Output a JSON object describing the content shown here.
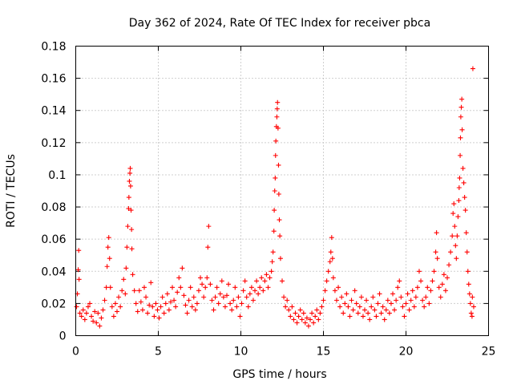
{
  "chart_data": {
    "type": "scatter",
    "title": "Day 362 of 2024, Rate Of TEC Index for receiver pbca",
    "xlabel": "GPS time / hours",
    "ylabel": "ROTI / TECUs",
    "xlim": [
      0,
      25
    ],
    "ylim": [
      0,
      0.18
    ],
    "x_ticks": [
      0,
      5,
      10,
      15,
      20,
      25
    ],
    "x_tick_labels": [
      "0",
      "5",
      "10",
      "15",
      "20",
      "25"
    ],
    "y_ticks": [
      0,
      0.02,
      0.04,
      0.06,
      0.08,
      0.1,
      0.12,
      0.14,
      0.16,
      0.18
    ],
    "y_tick_labels": [
      "0",
      "0.02",
      "0.04",
      "0.06",
      "0.08",
      "0.1",
      "0.12",
      "0.14",
      "0.16",
      "0.18"
    ],
    "grid": true,
    "marker": "+",
    "color": "#ff0000",
    "series": [
      {
        "name": "ROTI",
        "points": [
          [
            0.05,
            0.018
          ],
          [
            0.1,
            0.026
          ],
          [
            0.15,
            0.041
          ],
          [
            0.18,
            0.053
          ],
          [
            0.2,
            0.035
          ],
          [
            0.25,
            0.014
          ],
          [
            0.35,
            0.012
          ],
          [
            0.45,
            0.016
          ],
          [
            0.55,
            0.01
          ],
          [
            0.65,
            0.014
          ],
          [
            0.75,
            0.018
          ],
          [
            0.85,
            0.02
          ],
          [
            0.95,
            0.012
          ],
          [
            1.05,
            0.009
          ],
          [
            1.15,
            0.015
          ],
          [
            1.25,
            0.008
          ],
          [
            1.35,
            0.014
          ],
          [
            1.45,
            0.006
          ],
          [
            1.55,
            0.011
          ],
          [
            1.65,
            0.016
          ],
          [
            1.75,
            0.022
          ],
          [
            1.85,
            0.03
          ],
          [
            1.9,
            0.043
          ],
          [
            1.95,
            0.055
          ],
          [
            2.0,
            0.061
          ],
          [
            2.05,
            0.048
          ],
          [
            2.1,
            0.03
          ],
          [
            2.2,
            0.018
          ],
          [
            2.3,
            0.012
          ],
          [
            2.4,
            0.02
          ],
          [
            2.5,
            0.015
          ],
          [
            2.6,
            0.024
          ],
          [
            2.7,
            0.018
          ],
          [
            2.8,
            0.028
          ],
          [
            2.9,
            0.035
          ],
          [
            3.0,
            0.026
          ],
          [
            3.05,
            0.042
          ],
          [
            3.1,
            0.055
          ],
          [
            3.15,
            0.068
          ],
          [
            3.2,
            0.079
          ],
          [
            3.22,
            0.086
          ],
          [
            3.25,
            0.096
          ],
          [
            3.28,
            0.101
          ],
          [
            3.3,
            0.104
          ],
          [
            3.32,
            0.093
          ],
          [
            3.35,
            0.078
          ],
          [
            3.38,
            0.066
          ],
          [
            3.4,
            0.054
          ],
          [
            3.45,
            0.038
          ],
          [
            3.55,
            0.028
          ],
          [
            3.65,
            0.02
          ],
          [
            3.75,
            0.015
          ],
          [
            3.85,
            0.028
          ],
          [
            3.95,
            0.021
          ],
          [
            4.05,
            0.016
          ],
          [
            4.15,
            0.03
          ],
          [
            4.25,
            0.024
          ],
          [
            4.35,
            0.014
          ],
          [
            4.45,
            0.019
          ],
          [
            4.55,
            0.033
          ],
          [
            4.65,
            0.018
          ],
          [
            4.75,
            0.012
          ],
          [
            4.85,
            0.02
          ],
          [
            4.95,
            0.016
          ],
          [
            5.05,
            0.011
          ],
          [
            5.15,
            0.018
          ],
          [
            5.25,
            0.024
          ],
          [
            5.35,
            0.014
          ],
          [
            5.45,
            0.02
          ],
          [
            5.55,
            0.026
          ],
          [
            5.65,
            0.016
          ],
          [
            5.75,
            0.021
          ],
          [
            5.85,
            0.03
          ],
          [
            5.95,
            0.022
          ],
          [
            6.05,
            0.018
          ],
          [
            6.15,
            0.027
          ],
          [
            6.25,
            0.036
          ],
          [
            6.35,
            0.03
          ],
          [
            6.45,
            0.042
          ],
          [
            6.55,
            0.025
          ],
          [
            6.65,
            0.019
          ],
          [
            6.75,
            0.014
          ],
          [
            6.85,
            0.022
          ],
          [
            6.95,
            0.03
          ],
          [
            7.05,
            0.018
          ],
          [
            7.15,
            0.024
          ],
          [
            7.25,
            0.016
          ],
          [
            7.35,
            0.02
          ],
          [
            7.45,
            0.028
          ],
          [
            7.55,
            0.036
          ],
          [
            7.65,
            0.032
          ],
          [
            7.75,
            0.024
          ],
          [
            7.85,
            0.03
          ],
          [
            7.95,
            0.036
          ],
          [
            8.0,
            0.055
          ],
          [
            8.05,
            0.068
          ],
          [
            8.15,
            0.032
          ],
          [
            8.25,
            0.022
          ],
          [
            8.35,
            0.016
          ],
          [
            8.45,
            0.024
          ],
          [
            8.55,
            0.03
          ],
          [
            8.65,
            0.02
          ],
          [
            8.75,
            0.026
          ],
          [
            8.85,
            0.034
          ],
          [
            8.95,
            0.024
          ],
          [
            9.05,
            0.018
          ],
          [
            9.15,
            0.025
          ],
          [
            9.25,
            0.032
          ],
          [
            9.35,
            0.02
          ],
          [
            9.45,
            0.016
          ],
          [
            9.55,
            0.022
          ],
          [
            9.65,
            0.03
          ],
          [
            9.75,
            0.018
          ],
          [
            9.85,
            0.024
          ],
          [
            9.95,
            0.012
          ],
          [
            10.05,
            0.02
          ],
          [
            10.15,
            0.028
          ],
          [
            10.25,
            0.034
          ],
          [
            10.35,
            0.024
          ],
          [
            10.45,
            0.018
          ],
          [
            10.55,
            0.026
          ],
          [
            10.65,
            0.03
          ],
          [
            10.75,
            0.022
          ],
          [
            10.85,
            0.028
          ],
          [
            10.95,
            0.034
          ],
          [
            11.05,
            0.026
          ],
          [
            11.15,
            0.03
          ],
          [
            11.25,
            0.036
          ],
          [
            11.35,
            0.028
          ],
          [
            11.45,
            0.034
          ],
          [
            11.55,
            0.038
          ],
          [
            11.65,
            0.03
          ],
          [
            11.75,
            0.036
          ],
          [
            11.85,
            0.04
          ],
          [
            11.9,
            0.046
          ],
          [
            11.95,
            0.052
          ],
          [
            12.0,
            0.065
          ],
          [
            12.02,
            0.078
          ],
          [
            12.05,
            0.09
          ],
          [
            12.08,
            0.098
          ],
          [
            12.1,
            0.112
          ],
          [
            12.12,
            0.121
          ],
          [
            12.15,
            0.13
          ],
          [
            12.18,
            0.136
          ],
          [
            12.2,
            0.141
          ],
          [
            12.22,
            0.145
          ],
          [
            12.25,
            0.129
          ],
          [
            12.28,
            0.106
          ],
          [
            12.3,
            0.088
          ],
          [
            12.33,
            0.072
          ],
          [
            12.36,
            0.062
          ],
          [
            12.4,
            0.048
          ],
          [
            12.5,
            0.034
          ],
          [
            12.6,
            0.024
          ],
          [
            12.7,
            0.018
          ],
          [
            12.8,
            0.022
          ],
          [
            12.9,
            0.016
          ],
          [
            13.0,
            0.012
          ],
          [
            13.1,
            0.018
          ],
          [
            13.2,
            0.01
          ],
          [
            13.3,
            0.014
          ],
          [
            13.4,
            0.008
          ],
          [
            13.5,
            0.012
          ],
          [
            13.6,
            0.016
          ],
          [
            13.7,
            0.01
          ],
          [
            13.8,
            0.014
          ],
          [
            13.9,
            0.008
          ],
          [
            14.0,
            0.011
          ],
          [
            14.1,
            0.006
          ],
          [
            14.2,
            0.01
          ],
          [
            14.3,
            0.014
          ],
          [
            14.4,
            0.008
          ],
          [
            14.5,
            0.012
          ],
          [
            14.6,
            0.016
          ],
          [
            14.7,
            0.01
          ],
          [
            14.8,
            0.014
          ],
          [
            14.9,
            0.018
          ],
          [
            15.0,
            0.022
          ],
          [
            15.1,
            0.028
          ],
          [
            15.2,
            0.034
          ],
          [
            15.3,
            0.04
          ],
          [
            15.4,
            0.046
          ],
          [
            15.45,
            0.052
          ],
          [
            15.5,
            0.061
          ],
          [
            15.55,
            0.048
          ],
          [
            15.6,
            0.036
          ],
          [
            15.7,
            0.028
          ],
          [
            15.8,
            0.022
          ],
          [
            15.9,
            0.03
          ],
          [
            16.0,
            0.018
          ],
          [
            16.1,
            0.024
          ],
          [
            16.2,
            0.014
          ],
          [
            16.3,
            0.02
          ],
          [
            16.4,
            0.026
          ],
          [
            16.5,
            0.018
          ],
          [
            16.6,
            0.012
          ],
          [
            16.7,
            0.022
          ],
          [
            16.8,
            0.016
          ],
          [
            16.9,
            0.028
          ],
          [
            17.0,
            0.02
          ],
          [
            17.1,
            0.014
          ],
          [
            17.2,
            0.018
          ],
          [
            17.3,
            0.024
          ],
          [
            17.4,
            0.012
          ],
          [
            17.5,
            0.016
          ],
          [
            17.6,
            0.022
          ],
          [
            17.7,
            0.014
          ],
          [
            17.8,
            0.01
          ],
          [
            17.9,
            0.018
          ],
          [
            18.0,
            0.024
          ],
          [
            18.1,
            0.016
          ],
          [
            18.2,
            0.012
          ],
          [
            18.3,
            0.02
          ],
          [
            18.4,
            0.026
          ],
          [
            18.5,
            0.014
          ],
          [
            18.6,
            0.018
          ],
          [
            18.7,
            0.01
          ],
          [
            18.8,
            0.016
          ],
          [
            18.9,
            0.022
          ],
          [
            19.0,
            0.014
          ],
          [
            19.1,
            0.02
          ],
          [
            19.2,
            0.026
          ],
          [
            19.3,
            0.016
          ],
          [
            19.4,
            0.022
          ],
          [
            19.5,
            0.03
          ],
          [
            19.6,
            0.034
          ],
          [
            19.7,
            0.024
          ],
          [
            19.8,
            0.018
          ],
          [
            19.9,
            0.012
          ],
          [
            20.0,
            0.02
          ],
          [
            20.1,
            0.026
          ],
          [
            20.2,
            0.016
          ],
          [
            20.3,
            0.022
          ],
          [
            20.4,
            0.028
          ],
          [
            20.5,
            0.018
          ],
          [
            20.6,
            0.024
          ],
          [
            20.7,
            0.03
          ],
          [
            20.8,
            0.04
          ],
          [
            20.9,
            0.034
          ],
          [
            21.0,
            0.022
          ],
          [
            21.1,
            0.018
          ],
          [
            21.2,
            0.024
          ],
          [
            21.3,
            0.03
          ],
          [
            21.4,
            0.02
          ],
          [
            21.5,
            0.028
          ],
          [
            21.6,
            0.034
          ],
          [
            21.7,
            0.04
          ],
          [
            21.8,
            0.052
          ],
          [
            21.85,
            0.064
          ],
          [
            21.9,
            0.048
          ],
          [
            22.0,
            0.03
          ],
          [
            22.1,
            0.024
          ],
          [
            22.2,
            0.032
          ],
          [
            22.3,
            0.038
          ],
          [
            22.4,
            0.028
          ],
          [
            22.5,
            0.036
          ],
          [
            22.6,
            0.044
          ],
          [
            22.7,
            0.052
          ],
          [
            22.8,
            0.062
          ],
          [
            22.85,
            0.076
          ],
          [
            22.9,
            0.082
          ],
          [
            22.95,
            0.068
          ],
          [
            23.0,
            0.056
          ],
          [
            23.05,
            0.048
          ],
          [
            23.1,
            0.062
          ],
          [
            23.15,
            0.074
          ],
          [
            23.2,
            0.084
          ],
          [
            23.22,
            0.092
          ],
          [
            23.25,
            0.098
          ],
          [
            23.28,
            0.112
          ],
          [
            23.3,
            0.123
          ],
          [
            23.32,
            0.136
          ],
          [
            23.35,
            0.142
          ],
          [
            23.38,
            0.147
          ],
          [
            23.4,
            0.128
          ],
          [
            23.45,
            0.104
          ],
          [
            23.5,
            0.095
          ],
          [
            23.55,
            0.086
          ],
          [
            23.6,
            0.078
          ],
          [
            23.65,
            0.064
          ],
          [
            23.7,
            0.052
          ],
          [
            23.75,
            0.04
          ],
          [
            23.8,
            0.032
          ],
          [
            23.85,
            0.026
          ],
          [
            23.9,
            0.02
          ],
          [
            23.95,
            0.014
          ],
          [
            24.0,
            0.012
          ],
          [
            24.02,
            0.024
          ],
          [
            24.05,
            0.166
          ],
          [
            24.1,
            0.018
          ]
        ]
      }
    ]
  }
}
